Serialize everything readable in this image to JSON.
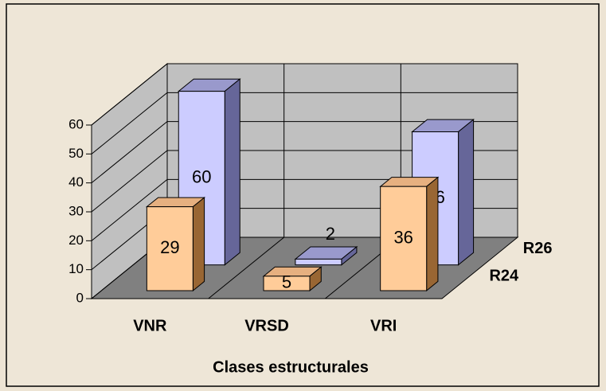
{
  "chart_data": {
    "type": "bar3d",
    "x_label": "Clases estructurales",
    "categories": [
      "VNR",
      "VRSD",
      "VRI"
    ],
    "series": [
      {
        "name": "R24",
        "color": "#ffcc99",
        "side": "#996633",
        "top": "#e6b080",
        "values": [
          29,
          5,
          36
        ]
      },
      {
        "name": "R26",
        "color": "#ccccff",
        "side": "#666699",
        "top": "#9999cc",
        "values": [
          60,
          2,
          46
        ]
      }
    ],
    "ylim": [
      0,
      60
    ],
    "yticks": [
      0,
      10,
      20,
      30,
      40,
      50,
      60
    ],
    "grid": true
  }
}
